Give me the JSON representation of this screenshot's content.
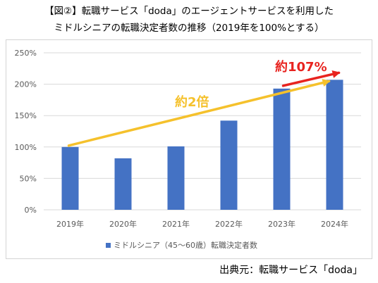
{
  "title_lines": [
    "【図②】転職サービス「doda」のエージェントサービスを利用した",
    "ミドルシニアの転職決定者数の推移（2019年を100%とする）"
  ],
  "source": "出典元：転職サービス「doda」",
  "annotations": {
    "growth_2019_2023": "約2倍",
    "growth_2023_2024": "約107%"
  },
  "colors": {
    "bar": "#4472c4",
    "trend_arrow": "#f5c12c",
    "recent_arrow": "#e8231f",
    "grid": "#d9d9d9"
  },
  "chart_data": {
    "type": "bar",
    "categories": [
      "2019年",
      "2020年",
      "2021年",
      "2022年",
      "2023年",
      "2024年"
    ],
    "series": [
      {
        "name": "ミドルシニア（45～60歳）転職決定者数",
        "values": [
          100,
          82,
          101,
          142,
          193,
          207
        ]
      }
    ],
    "ylim": [
      0,
      250
    ],
    "yticks": [
      0,
      50,
      100,
      150,
      200,
      250
    ],
    "ytick_labels": [
      "0%",
      "50%",
      "100%",
      "150%",
      "200%",
      "250%"
    ],
    "grid": true,
    "legend_position": "bottom"
  }
}
